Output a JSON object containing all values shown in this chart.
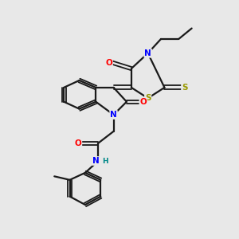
{
  "bg_color": "#e8e8e8",
  "atom_colors": {
    "N": "#0000ff",
    "O": "#ff0000",
    "S_yellow": "#999900",
    "C": "#000000",
    "H": "#008888"
  },
  "bond_color": "#1a1a1a",
  "figsize": [
    3.0,
    3.0
  ],
  "dpi": 100
}
